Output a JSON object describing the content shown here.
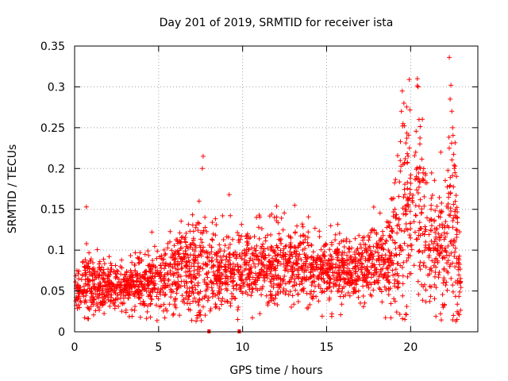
{
  "chart_data": {
    "type": "scatter",
    "title": "Day 201 of 2019, SRMTID for receiver ista",
    "xlabel": "GPS time / hours",
    "ylabel": "SRMTID / TECUs",
    "xlim": [
      0,
      24
    ],
    "ylim": [
      0,
      0.35
    ],
    "xticks": [
      0,
      5,
      10,
      15,
      20
    ],
    "xtick_labels": [
      "0",
      "5",
      "10",
      "15",
      "20"
    ],
    "yticks": [
      0,
      0.05,
      0.1,
      0.15,
      0.2,
      0.25,
      0.3,
      0.35
    ],
    "ytick_labels": [
      "0",
      "0.05",
      "0.1",
      "0.15",
      "0.2",
      "0.25",
      "0.3",
      "0.35"
    ],
    "grid": true,
    "marker": "+",
    "color": "#ff0000",
    "series": [
      {
        "name": "SRMTID",
        "x_start": 0,
        "x_end": 23,
        "envelope_hours": [
          0,
          1,
          2,
          3,
          4,
          5,
          6,
          7,
          7.5,
          8,
          9,
          10,
          11,
          12,
          13,
          14,
          15,
          16,
          17,
          18,
          18.8,
          19.3,
          19.7,
          20,
          20.5,
          21,
          21.5,
          22,
          22.5,
          23
        ],
        "envelope_mean": [
          0.05,
          0.06,
          0.055,
          0.055,
          0.06,
          0.065,
          0.07,
          0.075,
          0.08,
          0.075,
          0.072,
          0.078,
          0.08,
          0.085,
          0.085,
          0.08,
          0.075,
          0.075,
          0.078,
          0.085,
          0.09,
          0.12,
          0.15,
          0.14,
          0.16,
          0.1,
          0.1,
          0.1,
          0.14,
          0.05
        ],
        "envelope_spread": [
          0.015,
          0.018,
          0.015,
          0.015,
          0.018,
          0.02,
          0.025,
          0.03,
          0.04,
          0.025,
          0.02,
          0.022,
          0.022,
          0.025,
          0.025,
          0.022,
          0.02,
          0.02,
          0.02,
          0.022,
          0.03,
          0.06,
          0.08,
          0.05,
          0.07,
          0.04,
          0.035,
          0.04,
          0.08,
          0.015
        ],
        "peaks": [
          {
            "x": 0.7,
            "y": 0.153
          },
          {
            "x": 7.65,
            "y": 0.215
          },
          {
            "x": 7.6,
            "y": 0.2
          },
          {
            "x": 9.2,
            "y": 0.168
          },
          {
            "x": 13.1,
            "y": 0.155
          },
          {
            "x": 19.5,
            "y": 0.295
          },
          {
            "x": 19.6,
            "y": 0.28
          },
          {
            "x": 19.55,
            "y": 0.255
          },
          {
            "x": 20.4,
            "y": 0.31
          },
          {
            "x": 20.45,
            "y": 0.3
          },
          {
            "x": 20.5,
            "y": 0.26
          },
          {
            "x": 21.8,
            "y": 0.22
          },
          {
            "x": 22.3,
            "y": 0.336
          },
          {
            "x": 22.4,
            "y": 0.302
          },
          {
            "x": 22.35,
            "y": 0.285
          },
          {
            "x": 22.45,
            "y": 0.27
          },
          {
            "x": 22.5,
            "y": 0.25
          },
          {
            "x": 22.3,
            "y": 0.225
          },
          {
            "x": 22.6,
            "y": 0.2
          },
          {
            "x": 20.55,
            "y": 0.23
          },
          {
            "x": 19.45,
            "y": 0.27
          }
        ],
        "zero_markers": [
          {
            "x": 8.0,
            "y": 0
          },
          {
            "x": 9.8,
            "y": 0
          }
        ]
      }
    ]
  }
}
